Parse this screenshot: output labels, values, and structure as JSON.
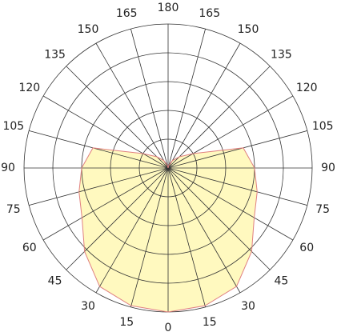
{
  "chart_data": {
    "type": "polar",
    "angle_ticks": [
      0,
      15,
      30,
      45,
      60,
      75,
      90,
      105,
      120,
      135,
      150,
      165,
      180
    ],
    "rlim": [
      0,
      5
    ],
    "rgrid": [
      1,
      2,
      3,
      4,
      5
    ],
    "series": [
      {
        "color": "#fff9bf",
        "line_color": "#e08080",
        "angles": [
          0,
          15,
          30,
          45,
          60,
          75,
          90,
          105,
          120,
          135,
          150,
          165,
          180
        ],
        "values": [
          5.0,
          4.95,
          4.75,
          4.1,
          3.45,
          3.2,
          3.0,
          2.7,
          1.0,
          0.55,
          0.3,
          0.1,
          0
        ]
      }
    ],
    "symmetric": true
  }
}
